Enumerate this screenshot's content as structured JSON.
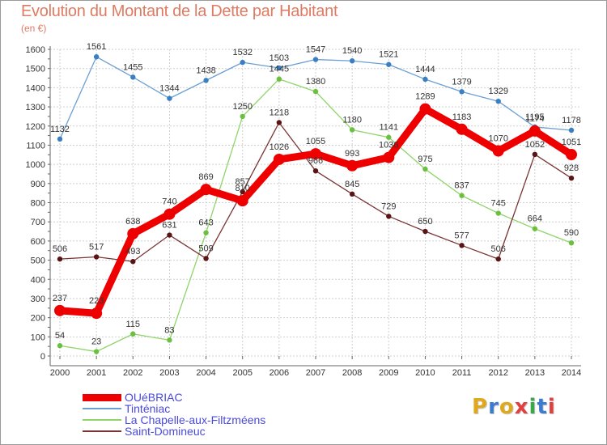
{
  "title": "Evolution du Montant de la Dette par Habitant",
  "unit": "(en €)",
  "logo": {
    "text": "Proxiti",
    "colors": [
      "#e0a81c",
      "#3b7bd0",
      "#e0a81c",
      "#e04040",
      "#39a848",
      "#3b7bd0",
      "#e04040"
    ]
  },
  "chart_data": {
    "type": "line",
    "title": "Evolution du Montant de la Dette par Habitant",
    "ylabel": "(en €)",
    "xlabel": "",
    "ylim": [
      0,
      1600
    ],
    "yticks": [
      0,
      100,
      200,
      300,
      400,
      500,
      600,
      700,
      800,
      900,
      1000,
      1100,
      1200,
      1300,
      1400,
      1500,
      1600
    ],
    "x": [
      "2000",
      "2001",
      "2002",
      "2003",
      "2004",
      "2005",
      "2006",
      "2007",
      "2008",
      "2009",
      "2010",
      "2011",
      "2012",
      "2013",
      "2014"
    ],
    "grid": true,
    "legend_position": "bottom-left",
    "series": [
      {
        "name": "Tinténiac",
        "color": "#6b9fd4",
        "dot": "#3a7fc1",
        "width": 1.3,
        "radius": 3.2,
        "values": [
          1132,
          1561,
          1455,
          1344,
          1438,
          1532,
          1503,
          1547,
          1540,
          1521,
          1444,
          1379,
          1329,
          1195,
          1178
        ]
      },
      {
        "name": "La Chapelle-aux-Filtzméens",
        "color": "#8fd46a",
        "dot": "#6cc040",
        "width": 1.3,
        "radius": 3.2,
        "values": [
          54,
          23,
          115,
          83,
          643,
          1250,
          1445,
          1380,
          1180,
          1141,
          975,
          837,
          745,
          664,
          590
        ]
      },
      {
        "name": "Saint-Domineuc",
        "color": "#7a3434",
        "dot": "#5a1414",
        "width": 1.3,
        "radius": 3.2,
        "values": [
          506,
          517,
          493,
          631,
          509,
          857,
          1218,
          966,
          845,
          729,
          650,
          577,
          506,
          1052,
          928
        ]
      },
      {
        "name": "OUéBRIAC",
        "color": "#ee0000",
        "dot": "#ee0000",
        "width": 9,
        "radius": 7,
        "values": [
          237,
          223,
          638,
          740,
          869,
          810,
          1026,
          1055,
          993,
          1036,
          1289,
          1183,
          1070,
          1174,
          1051
        ]
      }
    ],
    "legend_order": [
      "OUéBRIAC",
      "Tinténiac",
      "La Chapelle-aux-Filtzméens",
      "Saint-Domineuc"
    ]
  }
}
